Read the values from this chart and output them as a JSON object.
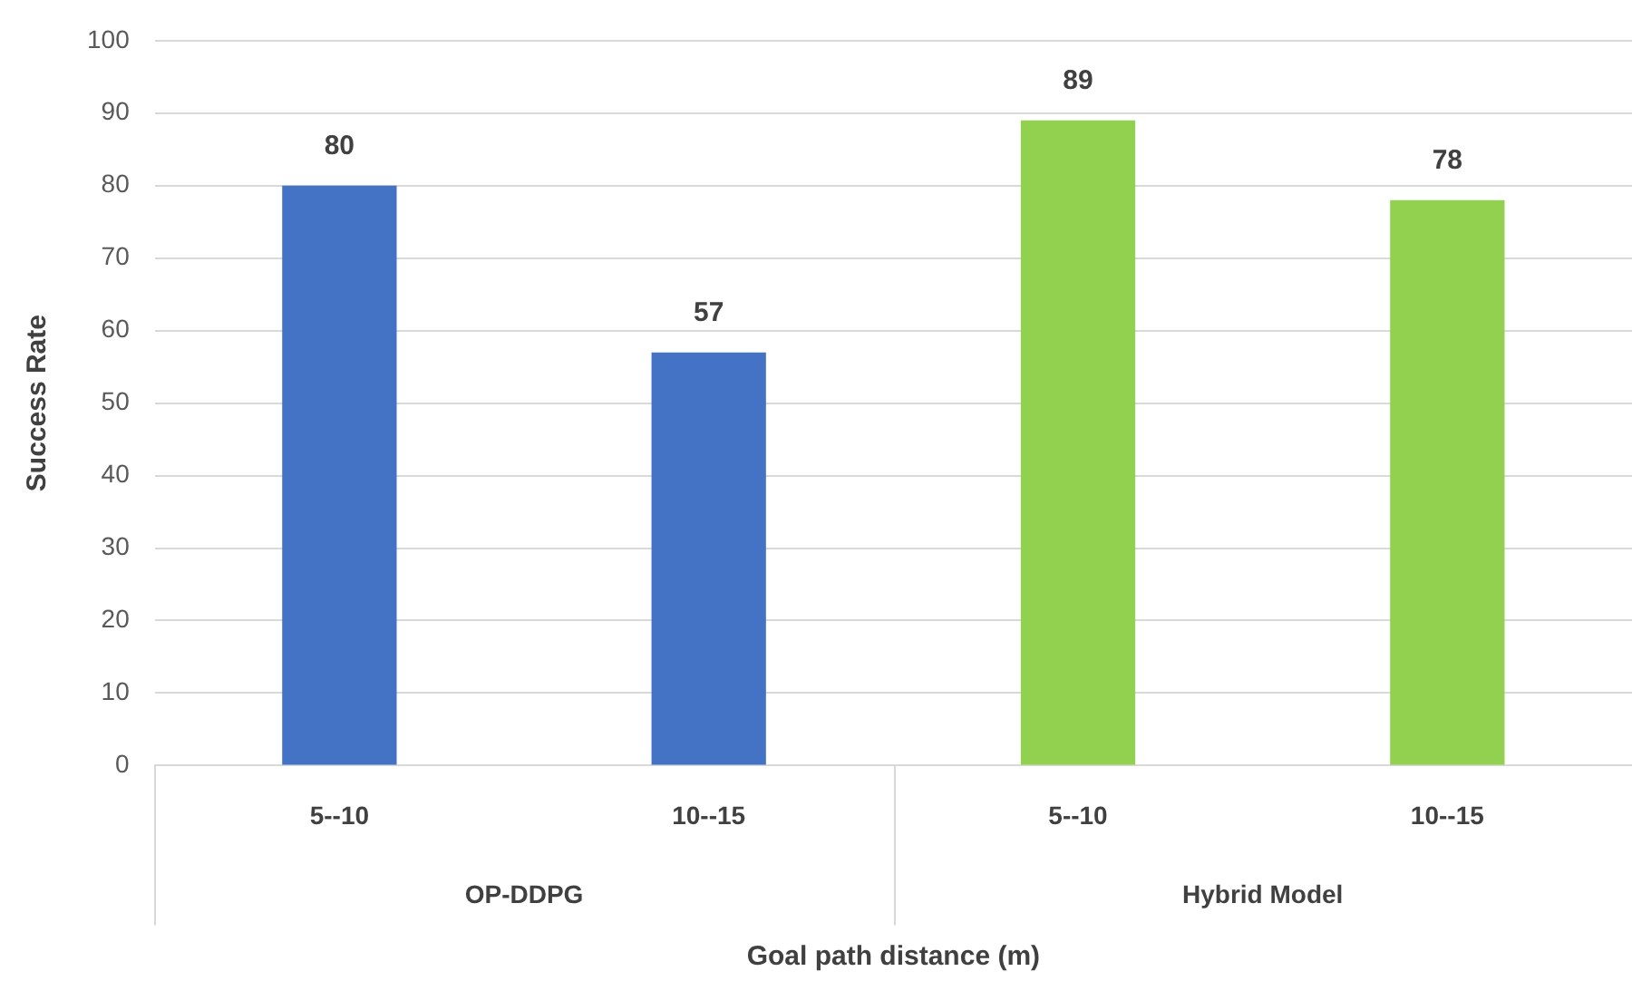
{
  "chart_data": {
    "type": "bar",
    "xlabel": "Goal path distance (m)",
    "ylabel": "Success Rate",
    "categories": [
      "5--10",
      "10--15",
      "5--10",
      "10--15"
    ],
    "values": [
      80,
      57,
      89,
      78
    ],
    "colors": [
      "#4472c4",
      "#4472c4",
      "#92d050",
      "#92d050"
    ],
    "annotations": [
      "OP-DDPG",
      "Hybrid Model"
    ],
    "ylim": [
      0,
      100
    ],
    "yticks": [
      0,
      10,
      20,
      30,
      40,
      50,
      60,
      70,
      80,
      90,
      100
    ],
    "grid": "y",
    "data_labels": true,
    "legend": false
  }
}
